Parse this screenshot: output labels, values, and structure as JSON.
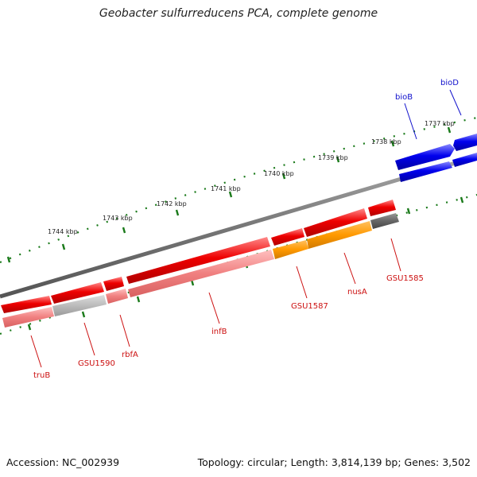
{
  "title": "Geobacter sulfurreducens PCA, complete genome",
  "footer": {
    "accession": "Accession: NC_002939",
    "info": "Topology: circular; Length: 3,814,139 bp; Genes: 3,502"
  },
  "colors": {
    "backbone": "#777777",
    "tick": "#1a7a1a",
    "forward_cds": "#0000ee",
    "reverse_cds": "#ee0000",
    "reverse_rna": "#f08080",
    "gene_label_forward": "#1010cc",
    "gene_label_reverse": "#cc1010",
    "nusA_overlay": "#ff9900",
    "gray_feature": "#bbbbbb",
    "dark_feature": "#666666"
  },
  "kbp_ticks": [
    {
      "label": "1737 kbp"
    },
    {
      "label": "1738 kbp"
    },
    {
      "label": "1739 kbp"
    },
    {
      "label": "1740 kbp"
    },
    {
      "label": "1741 kbp"
    },
    {
      "label": "1742 kbp"
    },
    {
      "label": "1743 kbp"
    },
    {
      "label": "1744 kbp"
    }
  ],
  "genes": {
    "forward": [
      {
        "label": "bioD"
      },
      {
        "label": "bioB"
      }
    ],
    "reverse": [
      {
        "label": "GSU1585"
      },
      {
        "label": "nusA"
      },
      {
        "label": "GSU1587"
      },
      {
        "label": "infB"
      },
      {
        "label": "rbfA"
      },
      {
        "label": "GSU1590"
      },
      {
        "label": "truB"
      }
    ]
  }
}
